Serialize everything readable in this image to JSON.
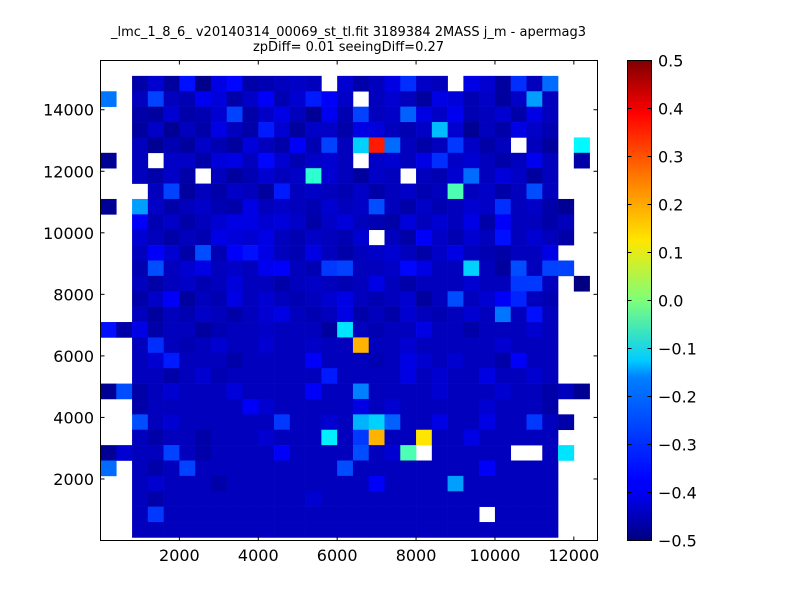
{
  "chart_data": {
    "type": "heatmap",
    "title": "_lmc_1_8_6_ v20140314_00069_st_tl.fit 3189384 2MASS j_m - apermag3",
    "subtitle": "zpDiff= 0.01 seeingDiff=0.27",
    "xlabel": "",
    "ylabel": "",
    "xlim": [
      0,
      12600
    ],
    "ylim": [
      0,
      15600
    ],
    "xticks": [
      2000,
      4000,
      6000,
      8000,
      10000,
      12000
    ],
    "yticks": [
      2000,
      4000,
      6000,
      8000,
      10000,
      12000,
      14000
    ],
    "colormap": "jet",
    "vmin": -0.5,
    "vmax": 0.5,
    "colorbar_ticks": [
      "0.5",
      "0.4",
      "0.3",
      "0.2",
      "0.1",
      "0.0",
      "−0.1",
      "−0.2",
      "−0.3",
      "−0.4",
      "−0.5"
    ],
    "grid": false,
    "bin_width": 400,
    "bin_height": 500,
    "columns": 31,
    "rows": 31,
    "values_note_order": "rows listed from top (y high) to bottom (y low); null = empty bin",
    "values": [
      [
        null,
        null,
        null,
        null,
        null,
        null,
        null,
        null,
        null,
        null,
        null,
        null,
        null,
        null,
        null,
        null,
        null,
        null,
        null,
        null,
        null,
        null,
        null,
        null,
        null,
        null,
        null,
        null,
        null,
        null,
        null
      ],
      [
        null,
        null,
        -0.46,
        -0.42,
        -0.47,
        -0.36,
        -0.49,
        -0.4,
        -0.37,
        -0.46,
        -0.45,
        -0.44,
        -0.43,
        -0.44,
        null,
        -0.42,
        -0.46,
        -0.44,
        -0.4,
        -0.33,
        -0.43,
        -0.44,
        null,
        -0.4,
        -0.42,
        -0.47,
        -0.33,
        -0.44,
        -0.27,
        null,
        null
      ],
      [
        -0.26,
        null,
        -0.44,
        -0.31,
        -0.44,
        -0.45,
        -0.39,
        -0.41,
        -0.46,
        -0.43,
        -0.38,
        -0.45,
        -0.42,
        -0.35,
        -0.38,
        -0.43,
        null,
        -0.44,
        -0.42,
        -0.44,
        -0.47,
        -0.4,
        -0.41,
        -0.45,
        -0.43,
        -0.47,
        -0.43,
        -0.22,
        -0.44,
        null,
        null
      ],
      [
        null,
        null,
        -0.46,
        -0.47,
        -0.42,
        -0.46,
        -0.45,
        -0.42,
        -0.31,
        -0.46,
        -0.43,
        -0.4,
        -0.44,
        -0.48,
        -0.39,
        -0.45,
        -0.31,
        -0.44,
        -0.43,
        -0.28,
        -0.4,
        -0.43,
        -0.39,
        -0.45,
        -0.44,
        -0.42,
        -0.46,
        -0.4,
        -0.44,
        null,
        null
      ],
      [
        null,
        null,
        -0.47,
        -0.43,
        -0.48,
        -0.44,
        -0.46,
        -0.4,
        -0.44,
        -0.46,
        -0.35,
        -0.42,
        -0.47,
        -0.43,
        -0.43,
        -0.46,
        -0.4,
        -0.41,
        -0.44,
        -0.45,
        -0.43,
        -0.19,
        -0.42,
        -0.48,
        -0.44,
        -0.46,
        -0.4,
        -0.43,
        -0.45,
        null,
        null
      ],
      [
        null,
        null,
        -0.44,
        -0.48,
        -0.45,
        -0.47,
        -0.43,
        -0.45,
        -0.47,
        -0.41,
        -0.44,
        -0.46,
        -0.38,
        -0.45,
        -0.31,
        -0.44,
        -0.17,
        0.35,
        -0.27,
        -0.44,
        -0.46,
        -0.44,
        -0.32,
        -0.43,
        -0.46,
        -0.44,
        null,
        -0.44,
        -0.47,
        null,
        -0.13
      ],
      [
        -0.48,
        null,
        -0.44,
        null,
        -0.43,
        -0.43,
        -0.46,
        -0.41,
        -0.4,
        -0.44,
        -0.37,
        -0.42,
        -0.45,
        -0.43,
        -0.42,
        -0.44,
        null,
        -0.43,
        -0.42,
        -0.44,
        -0.4,
        -0.33,
        -0.43,
        -0.42,
        -0.44,
        -0.46,
        -0.44,
        -0.39,
        -0.44,
        null,
        -0.46
      ],
      [
        null,
        null,
        -0.44,
        -0.46,
        -0.43,
        -0.46,
        null,
        -0.44,
        -0.47,
        -0.45,
        -0.42,
        -0.44,
        -0.43,
        -0.08,
        -0.42,
        -0.44,
        -0.47,
        -0.43,
        -0.44,
        null,
        -0.44,
        -0.45,
        -0.42,
        -0.27,
        -0.44,
        -0.41,
        -0.43,
        -0.47,
        -0.44,
        null,
        null
      ],
      [
        null,
        null,
        null,
        -0.44,
        -0.31,
        -0.47,
        -0.44,
        -0.46,
        -0.43,
        -0.44,
        -0.47,
        -0.35,
        -0.44,
        -0.43,
        -0.44,
        -0.45,
        -0.43,
        -0.46,
        -0.44,
        -0.43,
        -0.45,
        -0.44,
        -0.05,
        -0.44,
        -0.43,
        -0.46,
        -0.44,
        -0.3,
        -0.44,
        null,
        null
      ],
      [
        -0.48,
        null,
        -0.22,
        -0.43,
        -0.46,
        -0.44,
        -0.43,
        -0.45,
        -0.46,
        -0.4,
        -0.44,
        -0.43,
        -0.44,
        -0.45,
        -0.42,
        -0.44,
        -0.43,
        -0.3,
        -0.44,
        -0.46,
        -0.43,
        -0.45,
        -0.44,
        -0.42,
        -0.43,
        -0.33,
        -0.44,
        -0.43,
        -0.46,
        -0.48,
        null
      ],
      [
        null,
        null,
        -0.38,
        -0.45,
        -0.43,
        -0.46,
        -0.44,
        -0.42,
        -0.4,
        -0.4,
        -0.42,
        -0.41,
        -0.43,
        -0.46,
        -0.43,
        -0.41,
        -0.44,
        -0.45,
        -0.46,
        -0.41,
        -0.44,
        -0.42,
        -0.44,
        -0.4,
        -0.46,
        -0.38,
        -0.44,
        -0.44,
        -0.46,
        -0.44,
        null
      ],
      [
        null,
        null,
        -0.42,
        -0.44,
        -0.46,
        -0.44,
        -0.45,
        -0.4,
        -0.41,
        -0.42,
        -0.4,
        -0.44,
        -0.45,
        -0.43,
        -0.44,
        -0.45,
        -0.42,
        null,
        -0.44,
        -0.46,
        -0.38,
        -0.43,
        -0.45,
        -0.42,
        -0.44,
        -0.36,
        -0.44,
        -0.42,
        -0.44,
        -0.46,
        null
      ],
      [
        null,
        null,
        -0.44,
        -0.38,
        -0.42,
        -0.46,
        -0.3,
        -0.45,
        -0.38,
        -0.36,
        -0.4,
        -0.44,
        -0.45,
        -0.4,
        -0.44,
        -0.46,
        -0.44,
        -0.43,
        -0.42,
        -0.44,
        -0.46,
        -0.43,
        -0.4,
        -0.44,
        -0.45,
        -0.46,
        -0.44,
        -0.44,
        -0.4,
        null,
        null
      ],
      [
        null,
        null,
        -0.45,
        -0.3,
        -0.44,
        -0.42,
        -0.4,
        -0.44,
        -0.43,
        -0.44,
        -0.39,
        -0.38,
        -0.44,
        -0.45,
        -0.32,
        -0.31,
        -0.44,
        -0.44,
        -0.43,
        -0.37,
        -0.4,
        -0.44,
        -0.44,
        -0.17,
        -0.44,
        -0.47,
        -0.3,
        -0.44,
        -0.31,
        -0.31,
        null
      ],
      [
        null,
        null,
        -0.44,
        -0.46,
        -0.44,
        -0.43,
        -0.45,
        -0.44,
        -0.41,
        -0.44,
        -0.44,
        -0.46,
        -0.44,
        -0.43,
        -0.44,
        -0.45,
        -0.44,
        -0.4,
        -0.44,
        -0.46,
        -0.44,
        -0.44,
        -0.44,
        -0.42,
        -0.44,
        -0.44,
        -0.32,
        -0.32,
        -0.44,
        null,
        -0.5
      ],
      [
        null,
        null,
        -0.46,
        -0.43,
        -0.38,
        -0.47,
        -0.44,
        -0.45,
        -0.4,
        -0.44,
        -0.42,
        -0.44,
        -0.45,
        -0.44,
        -0.42,
        -0.4,
        -0.44,
        -0.45,
        -0.44,
        -0.42,
        -0.47,
        -0.44,
        -0.3,
        -0.44,
        -0.42,
        -0.38,
        -0.34,
        -0.44,
        -0.45,
        null,
        null
      ],
      [
        null,
        null,
        -0.44,
        -0.47,
        -0.44,
        -0.45,
        -0.43,
        -0.44,
        -0.46,
        -0.44,
        -0.42,
        -0.4,
        -0.44,
        -0.45,
        -0.44,
        -0.4,
        -0.46,
        -0.44,
        -0.46,
        -0.42,
        -0.44,
        -0.45,
        -0.44,
        -0.42,
        -0.44,
        -0.26,
        -0.44,
        -0.36,
        -0.44,
        null,
        null
      ],
      [
        -0.36,
        -0.46,
        -0.4,
        -0.46,
        -0.44,
        -0.44,
        -0.47,
        -0.45,
        -0.44,
        -0.44,
        -0.43,
        -0.44,
        -0.44,
        -0.44,
        -0.47,
        -0.15,
        -0.44,
        -0.45,
        -0.44,
        -0.44,
        -0.4,
        -0.44,
        -0.44,
        -0.46,
        -0.44,
        -0.44,
        -0.44,
        -0.42,
        -0.44,
        null,
        null
      ],
      [
        null,
        null,
        -0.44,
        -0.33,
        -0.44,
        -0.45,
        -0.44,
        -0.42,
        -0.44,
        -0.44,
        -0.42,
        -0.44,
        -0.44,
        -0.43,
        -0.44,
        -0.44,
        0.2,
        -0.44,
        -0.44,
        -0.42,
        -0.44,
        -0.44,
        -0.44,
        -0.44,
        -0.44,
        -0.42,
        -0.44,
        -0.44,
        -0.44,
        null,
        null
      ],
      [
        null,
        null,
        -0.44,
        -0.42,
        -0.35,
        -0.44,
        -0.44,
        -0.44,
        -0.46,
        -0.44,
        -0.44,
        -0.44,
        -0.44,
        -0.38,
        -0.44,
        -0.44,
        -0.44,
        -0.45,
        -0.44,
        -0.4,
        -0.42,
        -0.44,
        -0.42,
        -0.44,
        -0.44,
        -0.46,
        -0.38,
        -0.44,
        -0.44,
        null,
        null
      ],
      [
        null,
        null,
        -0.44,
        -0.44,
        -0.46,
        -0.44,
        -0.42,
        -0.45,
        -0.44,
        -0.44,
        -0.44,
        -0.44,
        -0.44,
        -0.44,
        -0.35,
        -0.44,
        -0.44,
        -0.44,
        -0.44,
        -0.4,
        -0.44,
        -0.42,
        -0.44,
        -0.44,
        -0.4,
        -0.44,
        -0.44,
        -0.42,
        -0.44,
        null,
        null
      ],
      [
        -0.48,
        -0.3,
        -0.46,
        -0.44,
        -0.42,
        -0.44,
        -0.44,
        -0.44,
        -0.41,
        -0.44,
        -0.44,
        -0.44,
        -0.44,
        -0.38,
        -0.44,
        -0.44,
        -0.25,
        -0.44,
        -0.44,
        -0.44,
        -0.44,
        -0.42,
        -0.44,
        -0.44,
        -0.44,
        -0.42,
        -0.44,
        -0.44,
        -0.46,
        -0.44,
        -0.48
      ],
      [
        null,
        null,
        -0.46,
        -0.44,
        -0.44,
        -0.44,
        -0.44,
        -0.44,
        -0.44,
        -0.38,
        -0.42,
        -0.44,
        -0.44,
        -0.44,
        -0.44,
        -0.44,
        -0.4,
        -0.44,
        -0.42,
        -0.44,
        -0.44,
        -0.44,
        -0.44,
        -0.44,
        -0.42,
        -0.44,
        -0.44,
        -0.44,
        -0.46,
        null,
        null
      ],
      [
        null,
        null,
        -0.3,
        -0.44,
        -0.42,
        -0.44,
        -0.44,
        -0.44,
        -0.44,
        -0.44,
        -0.44,
        -0.32,
        -0.44,
        -0.44,
        -0.42,
        -0.44,
        -0.2,
        -0.17,
        -0.28,
        -0.44,
        -0.44,
        -0.4,
        -0.44,
        -0.44,
        -0.4,
        -0.44,
        -0.44,
        -0.32,
        -0.44,
        -0.46,
        null
      ],
      [
        null,
        null,
        -0.44,
        -0.46,
        -0.44,
        -0.44,
        -0.46,
        -0.44,
        -0.44,
        -0.44,
        -0.42,
        -0.44,
        -0.44,
        -0.44,
        -0.14,
        -0.44,
        -0.32,
        0.2,
        -0.44,
        -0.44,
        0.15,
        -0.44,
        -0.44,
        -0.4,
        -0.44,
        -0.44,
        -0.44,
        -0.44,
        -0.44,
        null,
        null
      ],
      [
        -0.48,
        -0.42,
        -0.44,
        -0.44,
        -0.31,
        -0.44,
        -0.46,
        -0.44,
        -0.44,
        -0.44,
        -0.44,
        -0.38,
        -0.44,
        -0.44,
        -0.44,
        -0.44,
        -0.3,
        -0.44,
        -0.42,
        -0.05,
        null,
        -0.44,
        -0.44,
        -0.44,
        -0.44,
        -0.44,
        null,
        null,
        -0.44,
        -0.15,
        null
      ],
      [
        -0.27,
        null,
        -0.44,
        -0.46,
        -0.44,
        -0.31,
        -0.44,
        -0.44,
        -0.44,
        -0.44,
        -0.44,
        -0.44,
        -0.44,
        -0.44,
        -0.44,
        -0.3,
        -0.44,
        -0.44,
        -0.44,
        -0.44,
        -0.44,
        -0.44,
        -0.44,
        -0.44,
        -0.38,
        -0.44,
        -0.44,
        -0.44,
        -0.44,
        null,
        null
      ],
      [
        null,
        null,
        -0.44,
        -0.42,
        -0.44,
        -0.44,
        -0.44,
        -0.46,
        -0.44,
        -0.44,
        -0.44,
        -0.44,
        -0.44,
        -0.44,
        -0.44,
        -0.44,
        -0.44,
        -0.38,
        -0.44,
        -0.44,
        -0.44,
        -0.44,
        -0.22,
        -0.44,
        -0.44,
        -0.44,
        -0.44,
        -0.44,
        -0.44,
        null,
        null
      ],
      [
        null,
        null,
        -0.44,
        -0.46,
        -0.44,
        -0.44,
        -0.44,
        -0.44,
        -0.44,
        -0.44,
        -0.44,
        -0.44,
        -0.44,
        -0.42,
        -0.44,
        -0.44,
        -0.44,
        -0.44,
        -0.44,
        -0.44,
        -0.44,
        -0.44,
        -0.44,
        -0.44,
        -0.44,
        -0.44,
        -0.44,
        -0.44,
        -0.44,
        null,
        null
      ],
      [
        null,
        null,
        -0.44,
        -0.32,
        -0.44,
        -0.44,
        -0.44,
        -0.44,
        -0.44,
        -0.44,
        -0.44,
        -0.44,
        -0.44,
        -0.44,
        -0.44,
        -0.44,
        -0.44,
        -0.44,
        -0.44,
        -0.44,
        -0.44,
        -0.44,
        -0.44,
        -0.44,
        null,
        -0.44,
        -0.44,
        -0.44,
        -0.44,
        null,
        null
      ],
      [
        null,
        null,
        -0.44,
        -0.44,
        -0.44,
        -0.44,
        -0.44,
        -0.44,
        -0.44,
        -0.44,
        -0.44,
        -0.44,
        -0.44,
        -0.44,
        -0.44,
        -0.44,
        -0.44,
        -0.44,
        -0.44,
        -0.44,
        -0.44,
        -0.44,
        -0.44,
        -0.44,
        -0.44,
        -0.44,
        -0.44,
        -0.44,
        -0.44,
        null,
        null
      ]
    ]
  }
}
